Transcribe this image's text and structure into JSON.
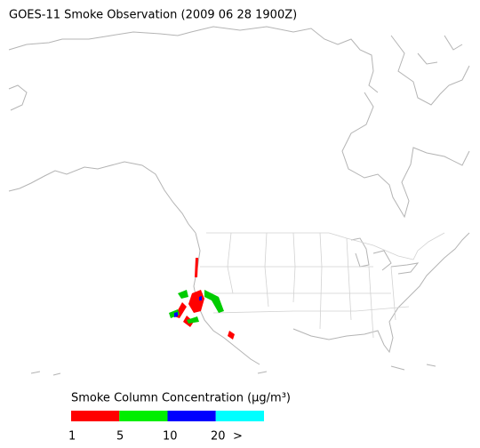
{
  "title": "GOES-11 Smoke Observation (2009 06 28  1900Z)",
  "legend": {
    "title": "Smoke Column Concentration (μg/m³)",
    "colors": [
      "#ff0000",
      "#00ee00",
      "#0000ff",
      "#00ffff"
    ],
    "ticks": [
      "1",
      "5",
      "10",
      "20",
      ">"
    ]
  }
}
